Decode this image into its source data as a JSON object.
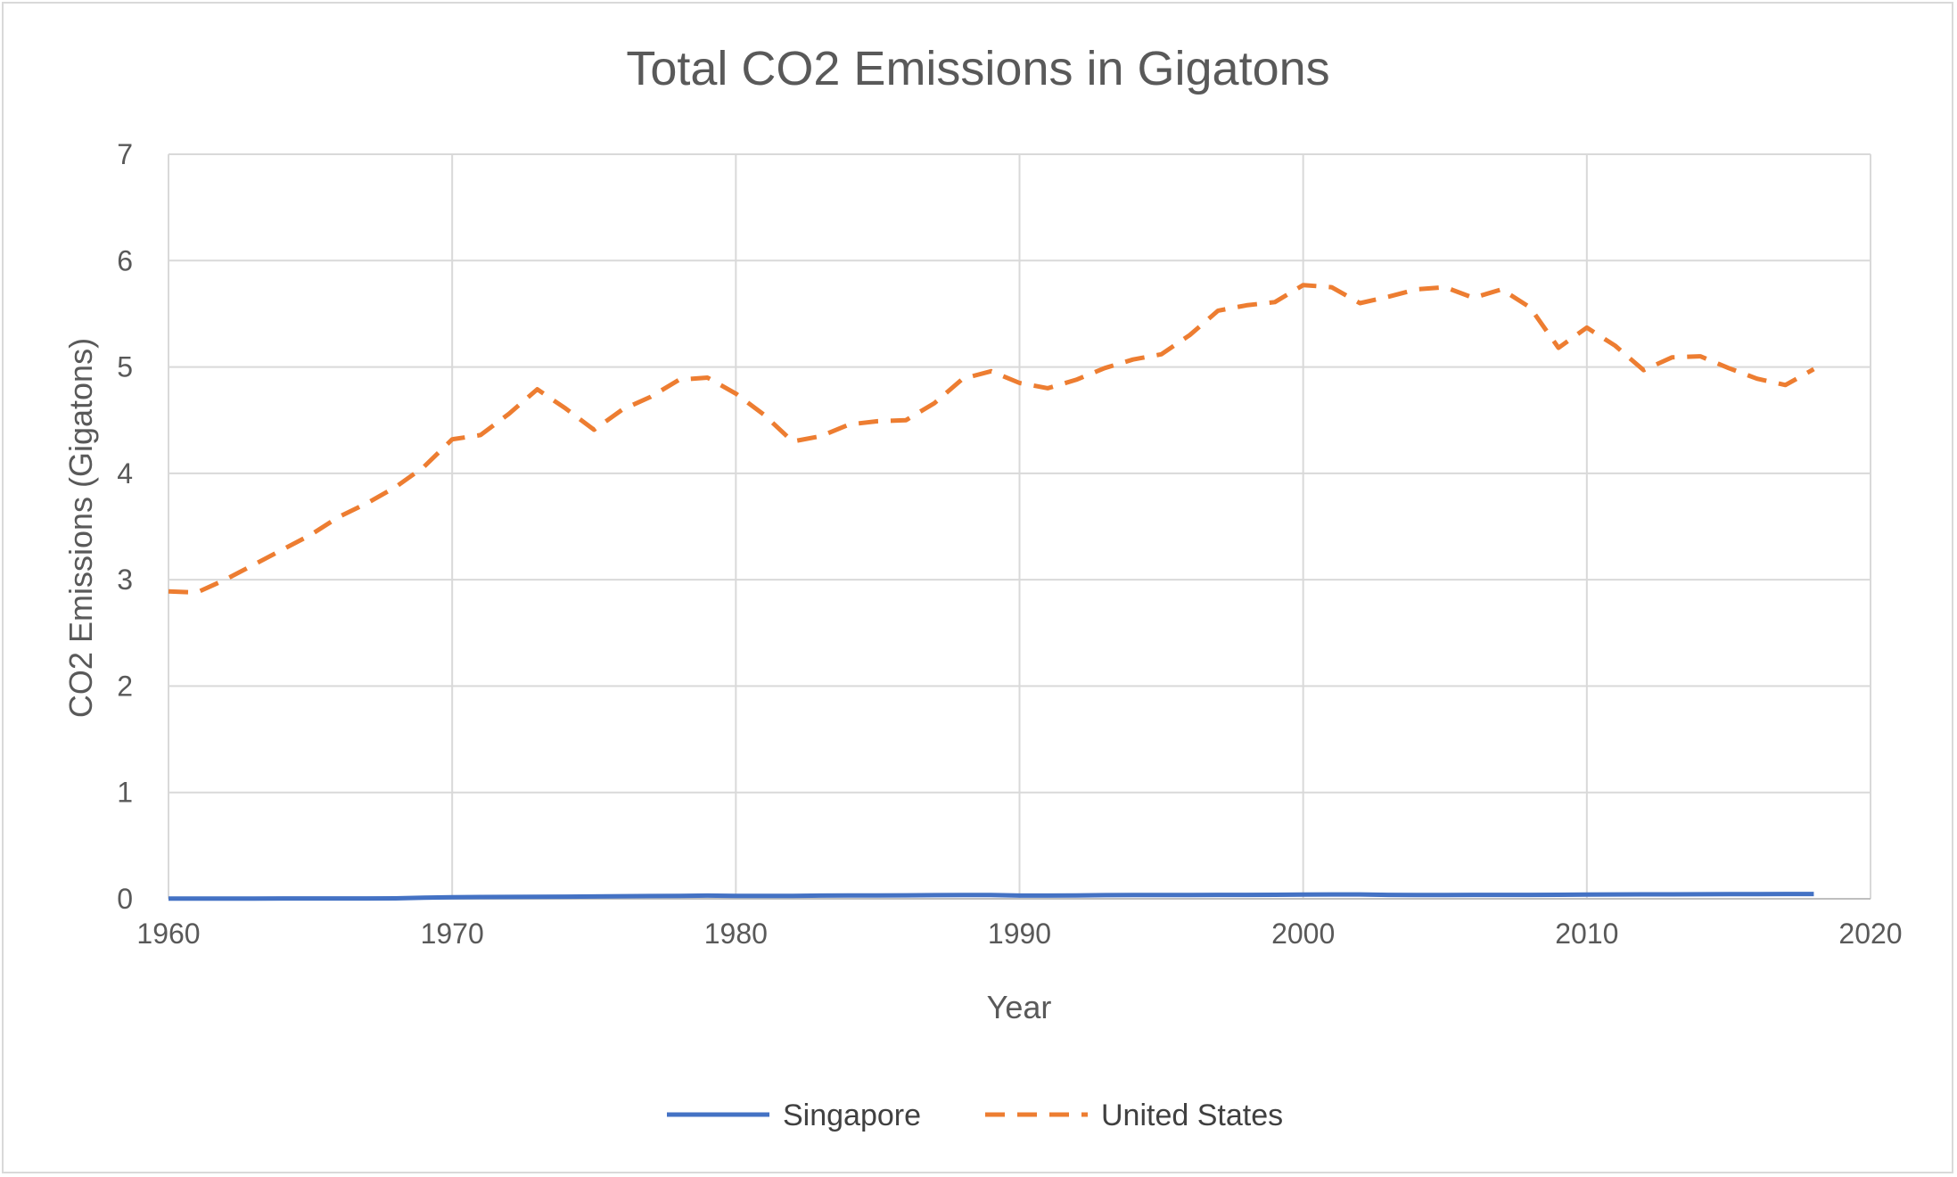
{
  "chart_data": {
    "type": "line",
    "title": "Total CO2 Emissions in Gigatons",
    "xlabel": "Year",
    "ylabel": "CO2 Emissions (Gigatons)",
    "xlim": [
      1960,
      2020
    ],
    "ylim": [
      0,
      7
    ],
    "x_ticks": [
      1960,
      1970,
      1980,
      1990,
      2000,
      2010,
      2020
    ],
    "y_ticks": [
      0,
      1,
      2,
      3,
      4,
      5,
      6,
      7
    ],
    "grid": true,
    "legend_position": "bottom",
    "x": [
      1960,
      1961,
      1962,
      1963,
      1964,
      1965,
      1966,
      1967,
      1968,
      1969,
      1970,
      1971,
      1972,
      1973,
      1974,
      1975,
      1976,
      1977,
      1978,
      1979,
      1980,
      1981,
      1982,
      1983,
      1984,
      1985,
      1986,
      1987,
      1988,
      1989,
      1990,
      1991,
      1992,
      1993,
      1994,
      1995,
      1996,
      1997,
      1998,
      1999,
      2000,
      2001,
      2002,
      2003,
      2004,
      2005,
      2006,
      2007,
      2008,
      2009,
      2010,
      2011,
      2012,
      2013,
      2014,
      2015,
      2016,
      2017,
      2018
    ],
    "series": [
      {
        "name": "Singapore",
        "color": "#4472c4",
        "style": "solid",
        "values": [
          0.002,
          0.002,
          0.002,
          0.002,
          0.003,
          0.003,
          0.003,
          0.003,
          0.004,
          0.01,
          0.015,
          0.017,
          0.018,
          0.019,
          0.02,
          0.022,
          0.024,
          0.026,
          0.028,
          0.03,
          0.028,
          0.027,
          0.028,
          0.03,
          0.031,
          0.032,
          0.033,
          0.034,
          0.035,
          0.036,
          0.03,
          0.03,
          0.032,
          0.034,
          0.035,
          0.035,
          0.036,
          0.037,
          0.037,
          0.038,
          0.04,
          0.041,
          0.041,
          0.037,
          0.036,
          0.036,
          0.037,
          0.037,
          0.037,
          0.038,
          0.04,
          0.041,
          0.042,
          0.042,
          0.043,
          0.044,
          0.044,
          0.045,
          0.045
        ]
      },
      {
        "name": "United States",
        "color": "#ed7d31",
        "style": "dashed",
        "values": [
          2.89,
          2.88,
          3.0,
          3.14,
          3.28,
          3.42,
          3.59,
          3.72,
          3.87,
          4.06,
          4.32,
          4.36,
          4.56,
          4.79,
          4.61,
          4.41,
          4.6,
          4.72,
          4.88,
          4.9,
          4.75,
          4.55,
          4.3,
          4.35,
          4.46,
          4.49,
          4.5,
          4.66,
          4.89,
          4.96,
          4.85,
          4.8,
          4.88,
          4.99,
          5.07,
          5.12,
          5.3,
          5.53,
          5.58,
          5.61,
          5.77,
          5.75,
          5.6,
          5.66,
          5.73,
          5.75,
          5.65,
          5.73,
          5.56,
          5.18,
          5.37,
          5.2,
          4.97,
          5.09,
          5.1,
          4.99,
          4.89,
          4.83,
          4.98
        ]
      }
    ]
  }
}
